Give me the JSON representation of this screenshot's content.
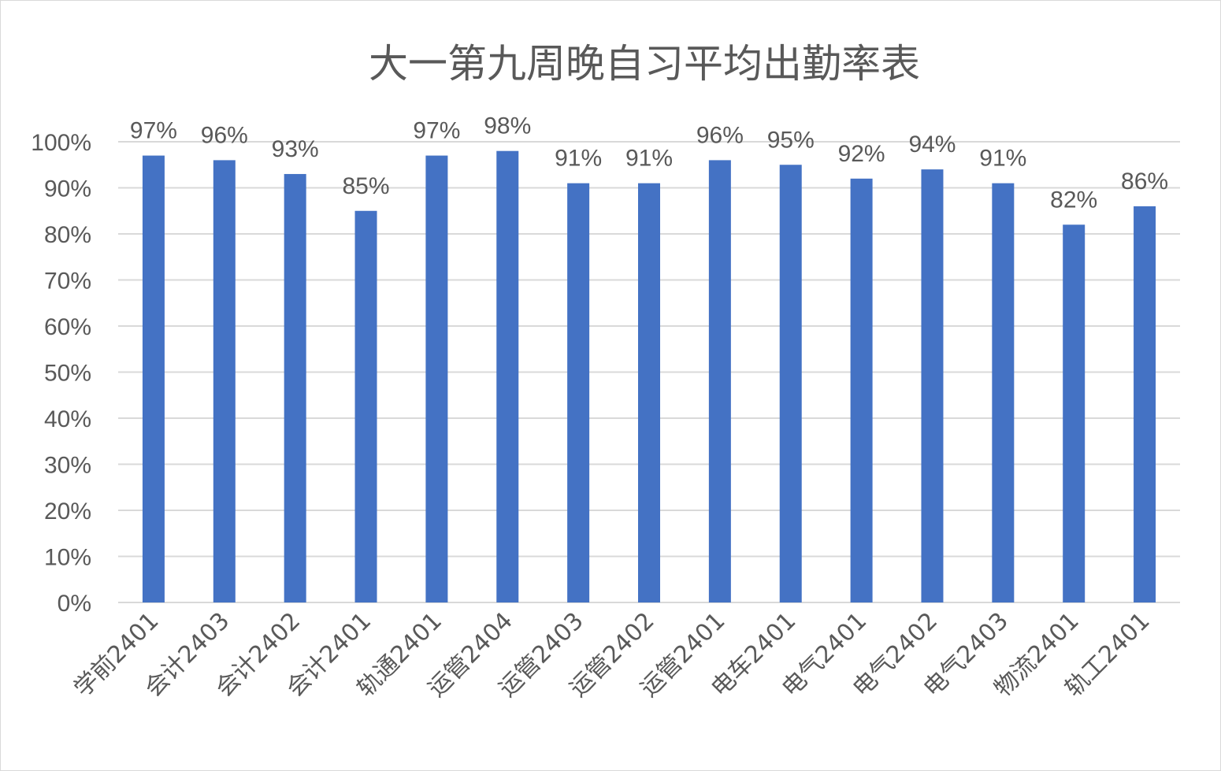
{
  "chart_data": {
    "type": "bar",
    "title": "大一第九周晚自习平均出勤率表",
    "categories": [
      "学前2401",
      "会计2403",
      "会计2402",
      "会计2401",
      "轨通2401",
      "运管2404",
      "运管2403",
      "运管2402",
      "运管2401",
      "电车2401",
      "电气2401",
      "电气2402",
      "电气2403",
      "物流2401",
      "轨工2401"
    ],
    "values": [
      97,
      96,
      93,
      85,
      97,
      98,
      91,
      91,
      96,
      95,
      92,
      94,
      91,
      82,
      86
    ],
    "data_labels": [
      "97%",
      "96%",
      "93%",
      "85%",
      "97%",
      "98%",
      "91%",
      "91%",
      "96%",
      "95%",
      "92%",
      "94%",
      "91%",
      "82%",
      "86%"
    ],
    "y_ticks": [
      "0%",
      "10%",
      "20%",
      "30%",
      "40%",
      "50%",
      "60%",
      "70%",
      "80%",
      "90%",
      "100%"
    ],
    "ylim": [
      0,
      100
    ],
    "grid": true,
    "legend": "none",
    "bar_color": "#4472C4",
    "grid_color": "#d9d9d9"
  }
}
